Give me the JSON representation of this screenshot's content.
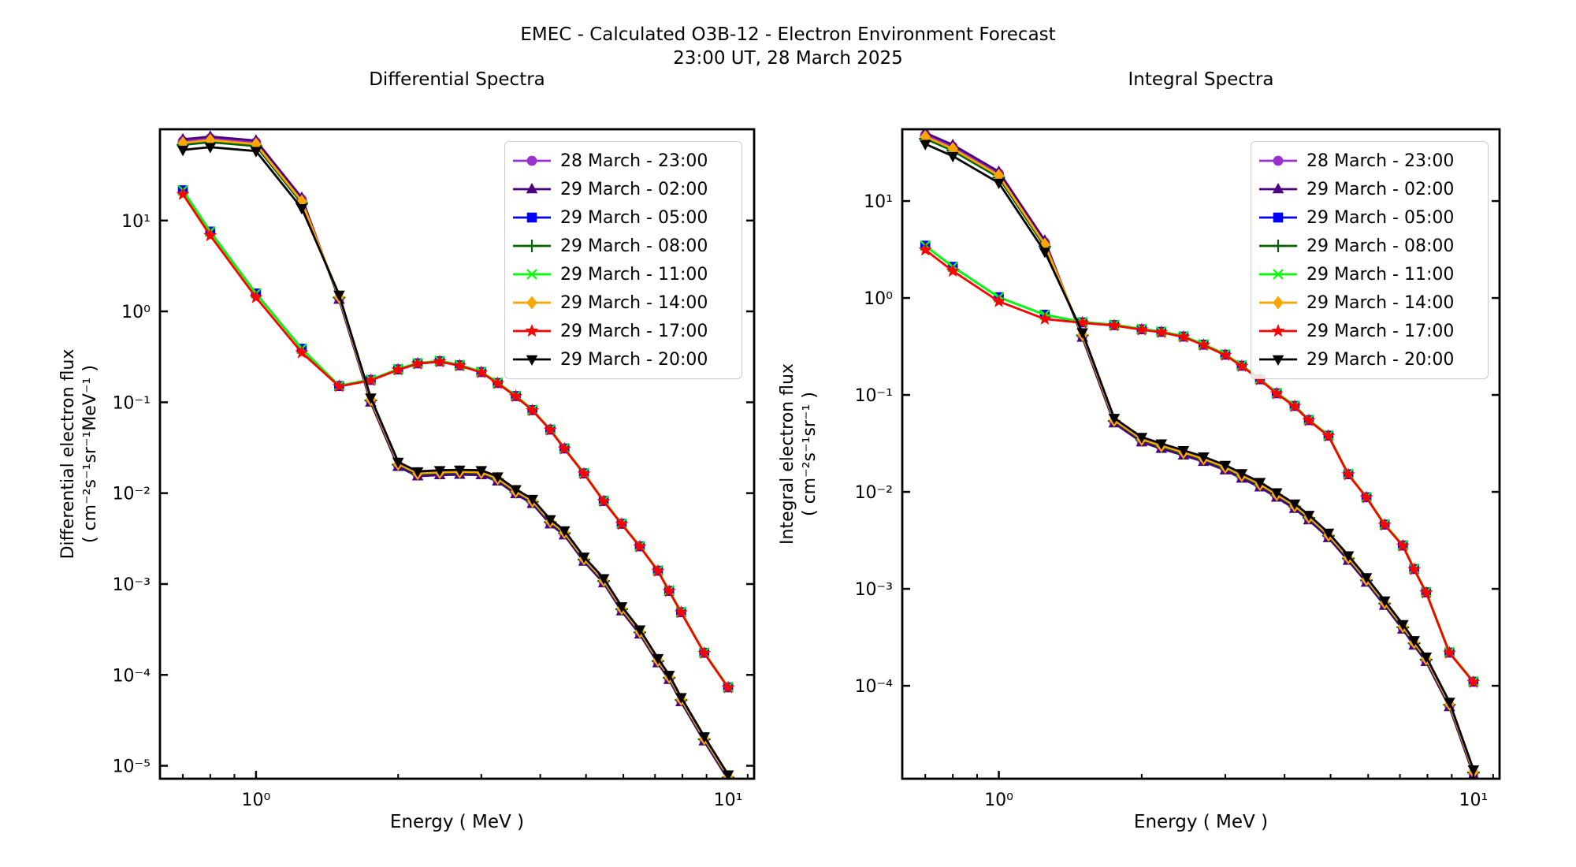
{
  "figure": {
    "suptitle_line1": "EMEC - Calculated O3B-12 - Electron Environment Forecast",
    "suptitle_line2": "23:00 UT, 28 March 2025",
    "background_color": "#ffffff",
    "text_color": "#000000"
  },
  "chart_data": [
    {
      "type": "line",
      "title": "Differential Spectra",
      "xlabel": "Energy ( MeV )",
      "ylabel_line1": "Differential electron flux",
      "ylabel_line2": "( cm⁻²s⁻¹sr⁻¹MeV⁻¹ )",
      "x_scale": "log",
      "y_scale": "log",
      "xlim": [
        0.626,
        11.35
      ],
      "ylim": [
        7.2e-06,
        101
      ],
      "x_major_ticks": [
        {
          "value": 1,
          "label": "10⁰"
        },
        {
          "value": 10,
          "label": "10¹"
        }
      ],
      "x_minor_ticks": [
        0.7,
        0.8,
        0.9,
        2,
        3,
        4,
        5,
        6,
        7,
        8,
        9,
        11
      ],
      "y_major_ticks": [
        {
          "value": 10,
          "label": "10¹"
        },
        {
          "value": 1,
          "label": "10⁰"
        },
        {
          "value": 0.1,
          "label": "10⁻¹"
        },
        {
          "value": 0.01,
          "label": "10⁻²"
        },
        {
          "value": 0.001,
          "label": "10⁻³"
        },
        {
          "value": 0.0001,
          "label": "10⁻⁴"
        },
        {
          "value": 1e-05,
          "label": "10⁻⁵"
        }
      ],
      "energies_MeV": [
        0.7,
        0.8,
        1.0,
        1.25,
        1.5,
        1.75,
        2.0,
        2.2,
        2.45,
        2.7,
        3.0,
        3.25,
        3.55,
        3.85,
        4.2,
        4.5,
        4.95,
        5.45,
        5.95,
        6.5,
        7.1,
        7.5,
        7.95,
        8.9,
        10.0
      ],
      "bundle_A_values": [
        68,
        73,
        66,
        15.5,
        1.45,
        0.107,
        0.021,
        0.0165,
        0.017,
        0.0172,
        0.017,
        0.0145,
        0.0105,
        0.0082,
        0.0049,
        0.0037,
        0.0019,
        0.0011,
        0.00054,
        0.0003,
        0.000145,
        9.5e-05,
        5.4e-05,
        2e-05,
        7.6e-06
      ],
      "bundle_B_values": [
        20.5,
        7.2,
        1.5,
        0.37,
        0.151,
        0.176,
        0.23,
        0.268,
        0.283,
        0.255,
        0.215,
        0.163,
        0.117,
        0.082,
        0.05,
        0.031,
        0.0165,
        0.0082,
        0.0046,
        0.0026,
        0.0014,
        0.00084,
        0.00049,
        0.000175,
        7.3e-05
      ]
    },
    {
      "type": "line",
      "title": "Integral Spectra",
      "xlabel": "Energy ( MeV )",
      "ylabel_line1": "Integral electron flux",
      "ylabel_line2": "( cm⁻²s⁻¹sr⁻¹ )",
      "x_scale": "log",
      "y_scale": "log",
      "xlim": [
        0.626,
        11.35
      ],
      "ylim": [
        1.1e-05,
        55
      ],
      "x_major_ticks": [
        {
          "value": 1,
          "label": "10⁰"
        },
        {
          "value": 10,
          "label": "10¹"
        }
      ],
      "x_minor_ticks": [
        0.7,
        0.8,
        0.9,
        2,
        3,
        4,
        5,
        6,
        7,
        8,
        9,
        11
      ],
      "y_major_ticks": [
        {
          "value": 10,
          "label": "10¹"
        },
        {
          "value": 1,
          "label": "10⁰"
        },
        {
          "value": 0.1,
          "label": "10⁻¹"
        },
        {
          "value": 0.01,
          "label": "10⁻²"
        },
        {
          "value": 0.001,
          "label": "10⁻³"
        },
        {
          "value": 0.0001,
          "label": "10⁻⁴"
        }
      ],
      "energies_MeV": [
        0.7,
        0.8,
        1.0,
        1.25,
        1.5,
        1.75,
        2.0,
        2.2,
        2.45,
        2.7,
        3.0,
        3.25,
        3.55,
        3.85,
        4.2,
        4.5,
        4.95,
        5.45,
        5.95,
        6.5,
        7.1,
        7.5,
        7.95,
        8.9,
        10.0
      ],
      "bundle_A_values": [
        44,
        33,
        17.5,
        3.4,
        0.42,
        0.055,
        0.035,
        0.03,
        0.0256,
        0.022,
        0.018,
        0.0148,
        0.012,
        0.0094,
        0.0072,
        0.0055,
        0.0036,
        0.0021,
        0.00125,
        0.00072,
        0.00041,
        0.00028,
        0.00019,
        6.5e-05,
        1.3e-05
      ],
      "bundle_B_values": [
        3.3,
        2.0,
        0.97,
        0.64,
        0.56,
        0.525,
        0.475,
        0.447,
        0.4,
        0.33,
        0.26,
        0.2,
        0.145,
        0.104,
        0.077,
        0.055,
        0.038,
        0.0152,
        0.0088,
        0.0046,
        0.0028,
        0.0016,
        0.00092,
        0.00022,
        0.00011
      ]
    }
  ],
  "series": [
    {
      "label": "28 March - 23:00",
      "color": "#9932CC",
      "marker": "circle",
      "bundle": "A",
      "scale_low_E": 1.1,
      "scale_high_E": 0.96
    },
    {
      "label": "29 March - 02:00",
      "color": "#4B0082",
      "marker": "triangle-up",
      "bundle": "A",
      "scale_low_E": 1.15,
      "scale_high_E": 0.93
    },
    {
      "label": "29 March - 05:00",
      "color": "#0000FF",
      "marker": "square",
      "bundle": "B",
      "scale_low_E": 1.05,
      "scale_high_E": 1.0
    },
    {
      "label": "29 March - 08:00",
      "color": "#006400",
      "marker": "plus",
      "bundle": "A",
      "scale_low_E": 1.0,
      "scale_high_E": 0.98
    },
    {
      "label": "29 March - 11:00",
      "color": "#00FF00",
      "marker": "x",
      "bundle": "B",
      "scale_low_E": 1.05,
      "scale_high_E": 1.01
    },
    {
      "label": "29 March - 14:00",
      "color": "#FFA500",
      "marker": "diamond",
      "bundle": "A",
      "scale_low_E": 1.05,
      "scale_high_E": 1.0
    },
    {
      "label": "29 March - 17:00",
      "color": "#FF0000",
      "marker": "star",
      "bundle": "B",
      "scale_low_E": 0.95,
      "scale_high_E": 0.99
    },
    {
      "label": "29 March - 20:00",
      "color": "#000000",
      "marker": "triangle-down",
      "bundle": "A",
      "scale_low_E": 0.88,
      "scale_high_E": 1.05
    }
  ],
  "legend": {
    "position": "upper right",
    "low_E_index_count": 4
  }
}
